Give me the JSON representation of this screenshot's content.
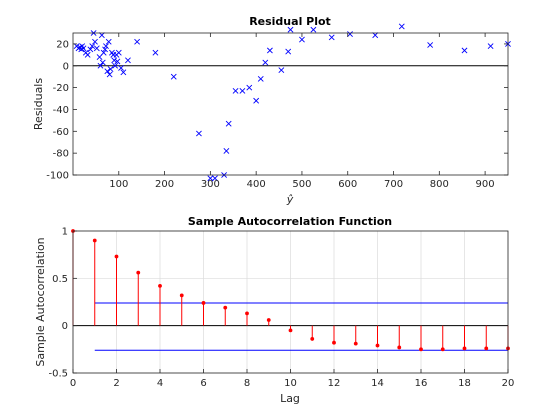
{
  "chart_data": [
    {
      "type": "scatter",
      "title": "Residual Plot",
      "xlabel": "ŷ",
      "ylabel": "Residuals",
      "xlim": [
        0,
        950
      ],
      "ylim": [
        -100,
        30
      ],
      "xticks": [
        100,
        200,
        300,
        400,
        500,
        600,
        700,
        800,
        900
      ],
      "yticks": [
        20,
        0,
        -20,
        -40,
        -60,
        -80,
        -100
      ],
      "grid": false,
      "marker": "x",
      "color": "#0000ff",
      "zero_line": 0,
      "series": [
        {
          "x": [
            8,
            12,
            15,
            18,
            20,
            23,
            28,
            32,
            38,
            42,
            45,
            48,
            52,
            58,
            60,
            63,
            65,
            67,
            70,
            72,
            75,
            78,
            80,
            82,
            85,
            88,
            90,
            92,
            95,
            97,
            100,
            105,
            110,
            120,
            140,
            180,
            220,
            275,
            300,
            310,
            330,
            335,
            340,
            355,
            370,
            385,
            400,
            410,
            420,
            430,
            455,
            470,
            475,
            500,
            525,
            565,
            605,
            660,
            718,
            780,
            855,
            912,
            950
          ],
          "y": [
            18,
            16,
            17,
            15,
            18,
            16,
            12,
            10,
            15,
            18,
            30,
            22,
            16,
            8,
            0,
            28,
            3,
            12,
            15,
            18,
            -5,
            22,
            -8,
            -3,
            12,
            10,
            5,
            0,
            10,
            4,
            12,
            -2,
            -6,
            5,
            22,
            12,
            -10,
            -62,
            -103,
            -103,
            -100,
            -78,
            -53,
            -23,
            -23,
            -20,
            -32,
            -12,
            3,
            14,
            -4,
            13,
            33,
            24,
            33,
            26,
            29,
            28,
            36,
            19,
            14,
            18,
            20
          ]
        }
      ]
    },
    {
      "type": "stem",
      "title": "Sample Autocorrelation Function",
      "xlabel": "Lag",
      "ylabel": "Sample Autocorrelation",
      "xlim": [
        0,
        20
      ],
      "ylim": [
        -0.5,
        1
      ],
      "xticks": [
        0,
        2,
        4,
        6,
        8,
        10,
        12,
        14,
        16,
        18,
        20
      ],
      "yticks": [
        1,
        0.5,
        0,
        -0.5
      ],
      "grid": true,
      "color": "#ff0000",
      "bound_color": "#0000ff",
      "confidence_bounds": [
        0.24,
        -0.26
      ],
      "lags": [
        0,
        1,
        2,
        3,
        4,
        5,
        6,
        7,
        8,
        9,
        10,
        11,
        12,
        13,
        14,
        15,
        16,
        17,
        18,
        19,
        20
      ],
      "values": [
        1.0,
        0.9,
        0.73,
        0.56,
        0.42,
        0.32,
        0.24,
        0.19,
        0.13,
        0.06,
        -0.05,
        -0.14,
        -0.18,
        -0.19,
        -0.21,
        -0.23,
        -0.25,
        -0.25,
        -0.24,
        -0.24,
        -0.24
      ]
    }
  ]
}
